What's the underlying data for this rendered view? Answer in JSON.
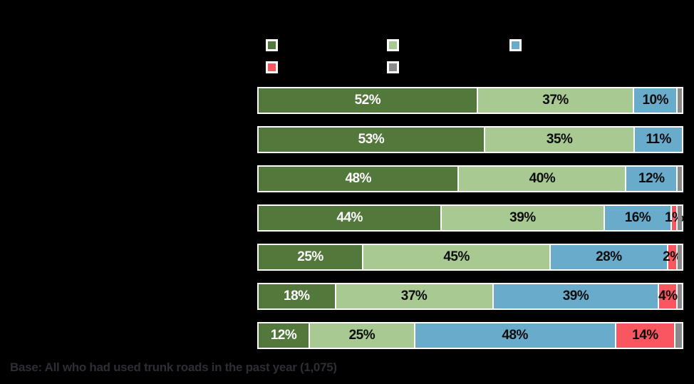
{
  "base_note": "Base: All who had used trunk roads in the past year (1,075)",
  "colors": {
    "background": "#000000",
    "bar_frame": "#ffffff",
    "base_note_text": "#2d2e35"
  },
  "legend": {
    "items": [
      {
        "key": "dark-green",
        "color": "#53783B",
        "label": ""
      },
      {
        "key": "light-green",
        "color": "#A8CA92",
        "label": ""
      },
      {
        "key": "blue",
        "color": "#69ABCB",
        "label": ""
      },
      {
        "key": "red",
        "color": "#F95660",
        "label": ""
      },
      {
        "key": "gray",
        "color": "#8A8A8A",
        "label": ""
      }
    ]
  },
  "chart_data": {
    "type": "bar",
    "variant": "horizontal-stacked",
    "orientation": "horizontal",
    "stacked": true,
    "value_suffix": "%",
    "xlim": [
      0,
      100
    ],
    "grid": false,
    "legend_position": "top",
    "category_labels_visible": false,
    "categories": [
      "",
      "",
      "",
      "",
      "",
      "",
      ""
    ],
    "series": [
      {
        "name": "dark-green",
        "color": "#53783B",
        "label_color": "#ffffff",
        "values": [
          52,
          53,
          48,
          44,
          25,
          18,
          12
        ],
        "labels": [
          "52%",
          "53%",
          "48%",
          "44%",
          "25%",
          "18%",
          "12%"
        ]
      },
      {
        "name": "light-green",
        "color": "#A8CA92",
        "label_color": "#0d0d0d",
        "values": [
          37,
          35,
          40,
          39,
          45,
          37,
          25
        ],
        "labels": [
          "37%",
          "35%",
          "40%",
          "39%",
          "45%",
          "37%",
          "25%"
        ]
      },
      {
        "name": "blue",
        "color": "#69ABCB",
        "label_color": "#0d0d0d",
        "values": [
          10,
          11,
          12,
          16,
          28,
          39,
          48
        ],
        "labels": [
          "10%",
          "11%",
          "12%",
          "16%",
          "28%",
          "39%",
          "48%"
        ]
      },
      {
        "name": "red",
        "color": "#F95660",
        "label_color": "#0d0d0d",
        "values": [
          0,
          0,
          0,
          1,
          2,
          4,
          14
        ],
        "labels": [
          "",
          "",
          "",
          "1%",
          "2%",
          "4%",
          "14%"
        ]
      },
      {
        "name": "gray",
        "color": "#8A8A8A",
        "label_color": "#0d0d0d",
        "values": [
          1,
          0,
          1,
          1,
          1,
          1,
          1.5
        ],
        "labels": [
          "",
          "",
          "",
          "",
          "",
          "",
          ""
        ]
      }
    ]
  }
}
